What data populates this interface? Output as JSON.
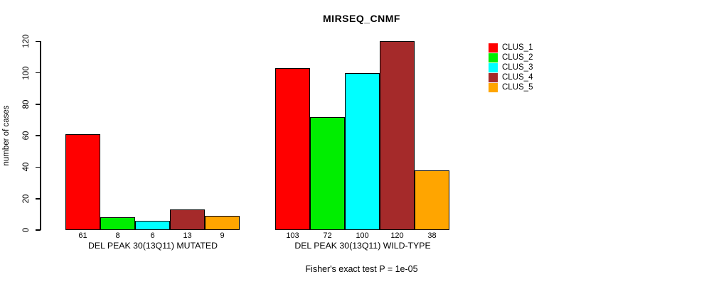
{
  "chart_data": {
    "type": "bar",
    "title": "MIRSEQ_CNMF",
    "subtitle": "Fisher's exact test P = 1e-05",
    "ylabel": "number of cases",
    "xlabel": "",
    "ylim": [
      0,
      120
    ],
    "yticks": [
      0,
      20,
      40,
      60,
      80,
      100,
      120
    ],
    "grid": "off",
    "legend_position": "right",
    "categories": [
      "DEL PEAK 30(13Q11) MUTATED",
      "DEL PEAK 30(13Q11) WILD-TYPE"
    ],
    "series": [
      {
        "name": "CLUS_1",
        "color": "#FF0000",
        "values": [
          61,
          103
        ]
      },
      {
        "name": "CLUS_2",
        "color": "#00EE00",
        "values": [
          8,
          72
        ]
      },
      {
        "name": "CLUS_3",
        "color": "#00FFFF",
        "values": [
          6,
          100
        ]
      },
      {
        "name": "CLUS_4",
        "color": "#A52A2A",
        "values": [
          13,
          120
        ]
      },
      {
        "name": "CLUS_5",
        "color": "#FFA500",
        "values": [
          9,
          38
        ]
      }
    ],
    "bar_value_labels": [
      [
        61,
        8,
        6,
        13,
        9
      ],
      [
        103,
        72,
        100,
        120,
        38
      ]
    ]
  },
  "colors": {
    "axis": "#000000",
    "bar_border": "#000000",
    "background": "#FFFFFF"
  }
}
